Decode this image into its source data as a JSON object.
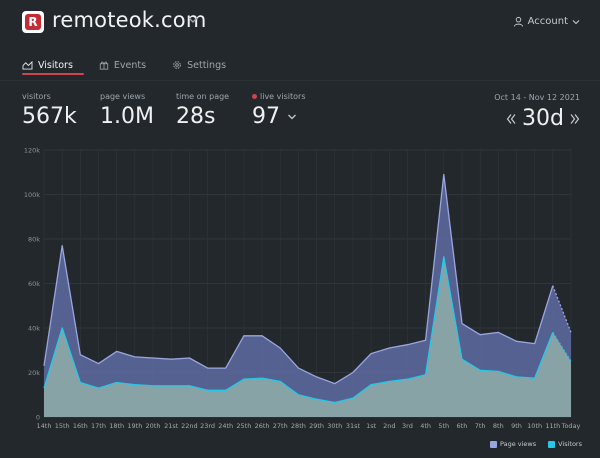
{
  "header": {
    "logo_letter": "R",
    "site_name": "remoteok.com",
    "account_label": "Account"
  },
  "tabs": [
    {
      "label": "Visitors",
      "icon": "chart-area-icon"
    },
    {
      "label": "Events",
      "icon": "gift-icon"
    },
    {
      "label": "Settings",
      "icon": "gear-icon"
    }
  ],
  "stats": {
    "visitors": {
      "label": "visitors",
      "value": "567k"
    },
    "page_views": {
      "label": "page views",
      "value": "1.0M"
    },
    "time_on_page": {
      "label": "time on page",
      "value": "28s"
    },
    "live_visitors": {
      "label": "live visitors",
      "value": "97"
    }
  },
  "date_range": "Oct 14 - Nov 12 2021",
  "period": "30d",
  "colors": {
    "accent": "#d0454d",
    "page_views_fill": "#5e6ba2",
    "page_views_line": "#9aa6e0",
    "visitors_fill": "#8aa7a6",
    "visitors_line": "#25c8e6",
    "background": "#23282c"
  },
  "legend": {
    "page_views": "Page views",
    "visitors": "Visitors"
  },
  "chart_data": {
    "type": "area",
    "categories": [
      "14th",
      "15th",
      "16th",
      "17th",
      "18th",
      "19th",
      "20th",
      "21st",
      "22nd",
      "23rd",
      "24th",
      "25th",
      "26th",
      "27th",
      "28th",
      "29th",
      "30th",
      "31st",
      "1st",
      "2nd",
      "3rd",
      "4th",
      "5th",
      "6th",
      "7th",
      "8th",
      "9th",
      "10th",
      "11th",
      "Today"
    ],
    "y_ticks": [
      "0",
      "20k",
      "40k",
      "60k",
      "80k",
      "100k",
      "120k"
    ],
    "ylim": [
      0,
      120000
    ],
    "series": [
      {
        "name": "Page views",
        "values": [
          23000,
          77000,
          28000,
          24000,
          29500,
          27000,
          26500,
          26000,
          26500,
          22000,
          22000,
          36500,
          36500,
          31000,
          22000,
          18000,
          15000,
          20000,
          28500,
          31000,
          32500,
          34500,
          109000,
          42000,
          37000,
          38000,
          34000,
          33000,
          59000,
          38000
        ]
      },
      {
        "name": "Visitors",
        "values": [
          13000,
          40000,
          15500,
          13000,
          15500,
          14500,
          14000,
          14000,
          14000,
          12000,
          12000,
          17000,
          17500,
          16000,
          10000,
          8000,
          6500,
          8500,
          14500,
          16000,
          17000,
          19000,
          72000,
          26000,
          21000,
          20500,
          18000,
          17500,
          38000,
          25000
        ]
      }
    ],
    "grid": true,
    "legend_position": "bottom-right"
  }
}
